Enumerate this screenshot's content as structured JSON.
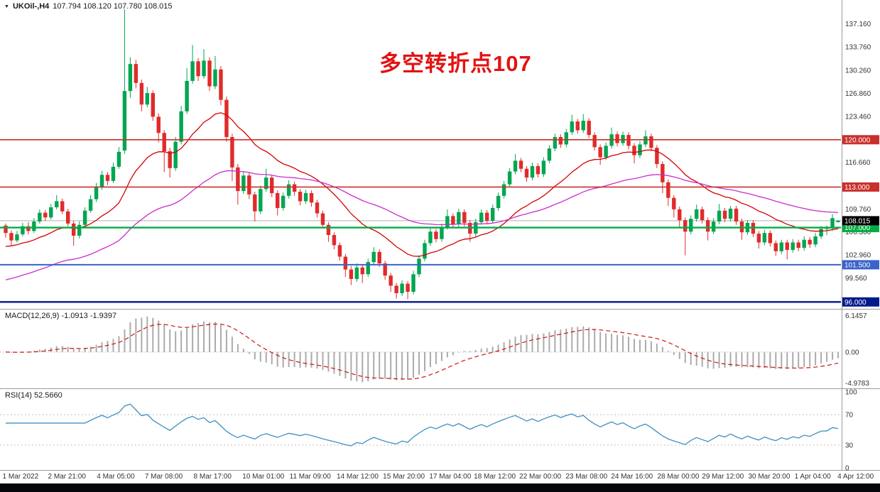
{
  "header": {
    "collapse_icon": "▼",
    "symbol": "UKOil-,H4",
    "quote": "107.794 108.120 107.780 108.015"
  },
  "annotation": "多空转折点107",
  "colors": {
    "annotation": "#e31212",
    "axis_text": "#333333",
    "separator": "#9b9b9b",
    "current_price_line": "#b0b0b0",
    "current_price_badge": "#000000",
    "bottom_bar": "#05050e"
  },
  "chart_data": {
    "type": "candlestick",
    "symbol": "UKOil",
    "timeframe": "H4",
    "bull_color": "#00a651",
    "bear_color": "#e02b2b",
    "y_range": [
      95.4,
      139.2
    ],
    "y_ticks": [
      [
        137.16,
        "137.160"
      ],
      [
        133.76,
        "133.760"
      ],
      [
        130.26,
        "130.260"
      ],
      [
        126.86,
        "126.860"
      ],
      [
        123.46,
        "123.460"
      ],
      [
        116.66,
        "116.660"
      ],
      [
        109.76,
        "109.760"
      ],
      [
        106.36,
        "106.360"
      ],
      [
        102.96,
        "102.960"
      ],
      [
        99.56,
        "99.560"
      ]
    ],
    "hlines": [
      {
        "price": 120.0,
        "label": "120.000",
        "color": "#c9302c",
        "width": 1.6
      },
      {
        "price": 113.0,
        "label": "113.000",
        "color": "#c9302c",
        "width": 1.6
      },
      {
        "price": 107.0,
        "label": "107.000",
        "color": "#00ae43",
        "width": 2.4
      },
      {
        "price": 101.5,
        "label": "101.500",
        "color": "#3a62c9",
        "width": 2.0
      },
      {
        "price": 96.0,
        "label": "96.000",
        "color": "#001a8c",
        "width": 2.4
      }
    ],
    "current_price": {
      "value": 108.015,
      "label": "108.015"
    },
    "moving_averages": [
      {
        "name": "ma-red",
        "period": 20,
        "seed": 104.0,
        "color": "#d40000"
      },
      {
        "name": "ma-magenta",
        "period": 55,
        "seed": 99.0,
        "color": "#cc2bcc"
      }
    ],
    "ohlc": [
      [
        107.3,
        107.6,
        105.5,
        106.2
      ],
      [
        106.2,
        106.6,
        104.4,
        105.1
      ],
      [
        105.1,
        106.5,
        104.8,
        106.0
      ],
      [
        106.0,
        107.7,
        105.7,
        107.2
      ],
      [
        107.2,
        107.8,
        106.0,
        106.5
      ],
      [
        106.5,
        108.4,
        106.2,
        107.9
      ],
      [
        107.9,
        109.7,
        107.6,
        109.2
      ],
      [
        109.2,
        109.6,
        108.0,
        108.5
      ],
      [
        108.5,
        110.5,
        108.2,
        110.0
      ],
      [
        110.0,
        111.8,
        109.7,
        110.9
      ],
      [
        110.9,
        111.3,
        109.0,
        109.4
      ],
      [
        109.4,
        109.8,
        107.2,
        107.6
      ],
      [
        107.6,
        108.0,
        104.3,
        105.8
      ],
      [
        105.8,
        107.9,
        105.4,
        107.4
      ],
      [
        107.4,
        110.0,
        107.1,
        109.5
      ],
      [
        109.5,
        111.8,
        109.2,
        111.2
      ],
      [
        111.2,
        113.6,
        110.8,
        113.0
      ],
      [
        113.0,
        115.4,
        112.6,
        114.8
      ],
      [
        114.8,
        115.2,
        113.3,
        113.9
      ],
      [
        113.9,
        116.6,
        113.6,
        116.0
      ],
      [
        116.0,
        118.9,
        115.7,
        118.2
      ],
      [
        118.4,
        139.3,
        117.9,
        127.2
      ],
      [
        127.2,
        132.2,
        126.2,
        131.2
      ],
      [
        131.2,
        131.8,
        127.6,
        128.4
      ],
      [
        128.4,
        128.9,
        124.2,
        125.2
      ],
      [
        125.2,
        127.8,
        124.8,
        126.9
      ],
      [
        126.9,
        127.3,
        122.8,
        123.4
      ],
      [
        123.4,
        123.9,
        119.6,
        121.0
      ],
      [
        121.0,
        121.4,
        115.2,
        118.3
      ],
      [
        118.3,
        118.8,
        114.4,
        115.8
      ],
      [
        115.8,
        120.4,
        115.4,
        119.7
      ],
      [
        119.7,
        125.0,
        119.3,
        124.2
      ],
      [
        124.2,
        130.6,
        123.8,
        128.7
      ],
      [
        128.7,
        134.0,
        128.3,
        131.6
      ],
      [
        131.6,
        132.1,
        128.7,
        129.4
      ],
      [
        129.4,
        133.4,
        129.0,
        131.7
      ],
      [
        131.7,
        132.2,
        127.2,
        127.9
      ],
      [
        127.9,
        132.4,
        127.5,
        130.4
      ],
      [
        130.4,
        130.9,
        125.1,
        125.9
      ],
      [
        125.9,
        126.4,
        119.7,
        120.4
      ],
      [
        120.4,
        120.9,
        113.9,
        115.9
      ],
      [
        115.9,
        116.4,
        110.4,
        112.4
      ],
      [
        112.4,
        115.3,
        112.0,
        114.7
      ],
      [
        114.7,
        115.1,
        111.2,
        111.9
      ],
      [
        111.9,
        112.3,
        107.9,
        109.4
      ],
      [
        109.4,
        113.2,
        109.0,
        112.7
      ],
      [
        112.7,
        115.7,
        112.3,
        114.4
      ],
      [
        114.4,
        114.8,
        111.5,
        112.1
      ],
      [
        112.1,
        112.5,
        108.8,
        109.9
      ],
      [
        109.9,
        112.2,
        109.5,
        111.7
      ],
      [
        111.7,
        114.0,
        111.3,
        113.4
      ],
      [
        113.4,
        113.8,
        111.7,
        112.3
      ],
      [
        112.3,
        112.7,
        110.3,
        110.9
      ],
      [
        110.9,
        112.6,
        110.5,
        112.1
      ],
      [
        112.1,
        112.5,
        110.1,
        110.7
      ],
      [
        110.7,
        111.1,
        108.5,
        109.1
      ],
      [
        109.1,
        109.5,
        106.9,
        107.4
      ],
      [
        107.4,
        107.8,
        104.9,
        105.9
      ],
      [
        105.9,
        106.3,
        103.8,
        104.4
      ],
      [
        104.4,
        104.8,
        102.1,
        102.7
      ],
      [
        102.7,
        103.1,
        99.7,
        100.8
      ],
      [
        100.8,
        101.3,
        98.5,
        99.4
      ],
      [
        99.4,
        101.7,
        99.0,
        101.1
      ],
      [
        101.1,
        101.5,
        98.8,
        100.1
      ],
      [
        100.1,
        102.4,
        99.7,
        101.9
      ],
      [
        101.9,
        104.1,
        101.5,
        103.4
      ],
      [
        103.4,
        103.8,
        101.2,
        101.7
      ],
      [
        101.7,
        102.1,
        99.3,
        99.9
      ],
      [
        99.9,
        100.3,
        97.5,
        98.4
      ],
      [
        98.4,
        98.8,
        96.5,
        97.3
      ],
      [
        97.3,
        99.2,
        96.9,
        98.7
      ],
      [
        98.7,
        99.1,
        96.4,
        97.5
      ],
      [
        97.5,
        100.6,
        97.1,
        100.1
      ],
      [
        100.1,
        102.9,
        99.7,
        102.4
      ],
      [
        102.4,
        105.2,
        102.0,
        104.7
      ],
      [
        104.7,
        106.9,
        104.3,
        106.4
      ],
      [
        106.4,
        106.8,
        104.8,
        105.3
      ],
      [
        105.3,
        107.6,
        104.9,
        107.1
      ],
      [
        107.1,
        109.7,
        106.7,
        108.7
      ],
      [
        108.7,
        109.1,
        107.0,
        107.5
      ],
      [
        107.5,
        109.8,
        107.1,
        109.3
      ],
      [
        109.3,
        109.7,
        107.2,
        107.7
      ],
      [
        107.7,
        108.1,
        104.9,
        106.1
      ],
      [
        106.1,
        108.3,
        105.7,
        107.8
      ],
      [
        107.8,
        109.7,
        107.4,
        109.2
      ],
      [
        109.2,
        109.6,
        107.5,
        108.0
      ],
      [
        108.0,
        110.4,
        107.6,
        109.9
      ],
      [
        109.9,
        112.2,
        109.5,
        111.7
      ],
      [
        111.7,
        113.9,
        111.3,
        113.4
      ],
      [
        113.4,
        115.8,
        113.0,
        115.3
      ],
      [
        115.3,
        117.9,
        114.9,
        116.9
      ],
      [
        116.9,
        117.3,
        115.2,
        115.7
      ],
      [
        115.7,
        116.1,
        113.8,
        114.4
      ],
      [
        114.4,
        116.6,
        114.0,
        116.1
      ],
      [
        116.1,
        116.5,
        114.4,
        114.9
      ],
      [
        114.9,
        117.4,
        114.5,
        116.9
      ],
      [
        116.9,
        119.2,
        116.5,
        118.7
      ],
      [
        118.7,
        120.9,
        118.3,
        120.4
      ],
      [
        120.4,
        120.8,
        118.8,
        119.3
      ],
      [
        119.3,
        121.6,
        118.9,
        121.1
      ],
      [
        121.1,
        123.7,
        120.7,
        122.7
      ],
      [
        122.7,
        123.1,
        120.9,
        121.4
      ],
      [
        121.4,
        123.8,
        121.0,
        122.8
      ],
      [
        122.8,
        123.2,
        120.2,
        120.7
      ],
      [
        120.7,
        121.1,
        118.4,
        118.9
      ],
      [
        118.9,
        119.3,
        116.3,
        117.4
      ],
      [
        117.4,
        119.6,
        117.0,
        119.1
      ],
      [
        119.1,
        121.8,
        118.7,
        120.8
      ],
      [
        120.8,
        121.2,
        119.0,
        119.5
      ],
      [
        119.5,
        121.2,
        119.1,
        120.7
      ],
      [
        120.7,
        121.1,
        118.6,
        119.1
      ],
      [
        119.1,
        119.5,
        116.5,
        117.7
      ],
      [
        117.7,
        119.8,
        117.3,
        119.3
      ],
      [
        119.3,
        121.4,
        118.9,
        120.5
      ],
      [
        120.5,
        120.9,
        118.3,
        118.8
      ],
      [
        118.8,
        119.2,
        115.8,
        116.4
      ],
      [
        116.4,
        116.8,
        112.1,
        113.7
      ],
      [
        113.7,
        114.1,
        110.2,
        111.4
      ],
      [
        111.4,
        111.8,
        108.5,
        109.7
      ],
      [
        109.7,
        110.1,
        106.9,
        108.1
      ],
      [
        108.1,
        108.5,
        102.9,
        106.4
      ],
      [
        106.4,
        108.8,
        106.0,
        108.3
      ],
      [
        108.3,
        110.4,
        107.9,
        109.7
      ],
      [
        109.7,
        110.1,
        107.6,
        108.1
      ],
      [
        108.1,
        108.5,
        105.1,
        106.4
      ],
      [
        106.4,
        108.4,
        106.0,
        107.9
      ],
      [
        107.9,
        110.5,
        107.5,
        109.5
      ],
      [
        109.5,
        109.9,
        107.8,
        108.3
      ],
      [
        108.3,
        110.2,
        107.9,
        109.8
      ],
      [
        109.8,
        110.2,
        107.4,
        107.9
      ],
      [
        107.9,
        108.3,
        105.2,
        106.3
      ],
      [
        106.3,
        108.1,
        105.9,
        107.7
      ],
      [
        107.7,
        108.1,
        105.6,
        106.1
      ],
      [
        106.1,
        106.5,
        103.9,
        104.8
      ],
      [
        104.8,
        106.7,
        104.4,
        106.2
      ],
      [
        106.2,
        106.6,
        104.2,
        104.7
      ],
      [
        104.7,
        105.1,
        102.8,
        103.5
      ],
      [
        103.5,
        105.2,
        103.1,
        104.8
      ],
      [
        104.8,
        105.2,
        102.3,
        103.7
      ],
      [
        103.7,
        105.3,
        103.3,
        104.8
      ],
      [
        104.8,
        105.2,
        103.5,
        104.0
      ],
      [
        104.0,
        105.7,
        103.6,
        105.2
      ],
      [
        105.2,
        105.6,
        104.0,
        104.5
      ],
      [
        104.5,
        106.2,
        104.1,
        105.7
      ],
      [
        105.7,
        107.2,
        105.3,
        106.8
      ],
      [
        106.8,
        107.3,
        105.9,
        106.9
      ],
      [
        106.9,
        109.0,
        106.5,
        108.4
      ],
      [
        107.794,
        108.12,
        107.78,
        108.015
      ]
    ],
    "x_labels": [
      {
        "text": "1 Mar 2022",
        "pos": 0.003
      },
      {
        "text": "2 Mar 21:00",
        "pos": 0.057
      },
      {
        "text": "4 Mar 05:00",
        "pos": 0.115
      },
      {
        "text": "7 Mar 08:00",
        "pos": 0.172
      },
      {
        "text": "8 Mar 17:00",
        "pos": 0.23
      },
      {
        "text": "10 Mar 01:00",
        "pos": 0.288
      },
      {
        "text": "11 Mar 09:00",
        "pos": 0.344
      },
      {
        "text": "14 Mar 12:00",
        "pos": 0.4
      },
      {
        "text": "15 Mar 20:00",
        "pos": 0.455
      },
      {
        "text": "17 Mar 04:00",
        "pos": 0.51
      },
      {
        "text": "18 Mar 12:00",
        "pos": 0.563
      },
      {
        "text": "22 Mar 00:00",
        "pos": 0.617
      },
      {
        "text": "23 Mar 08:00",
        "pos": 0.672
      },
      {
        "text": "24 Mar 16:00",
        "pos": 0.726
      },
      {
        "text": "28 Mar 00:00",
        "pos": 0.781
      },
      {
        "text": "29 Mar 12:00",
        "pos": 0.834
      },
      {
        "text": "30 Mar 20:00",
        "pos": 0.889
      },
      {
        "text": "1 Apr 04:00",
        "pos": 0.944
      },
      {
        "text": "4 Apr 12:00",
        "pos": 0.995
      }
    ],
    "indicators": {
      "macd": {
        "label": "MACD(12,26,9) -1.0913 -1.9397",
        "fast": 12,
        "slow": 26,
        "signal": 9,
        "axis_labels": {
          "max": "6.1457",
          "zero": "0.00",
          "min": "-4.9783"
        },
        "histogram_color": "#ababab",
        "signal_color": "#cc1414"
      },
      "rsi": {
        "label": "RSI(14) 52.5660",
        "period": 14,
        "levels": [
          70,
          30
        ],
        "axis_labels": [
          [
            100,
            "100"
          ],
          [
            70,
            "70"
          ],
          [
            30,
            "30"
          ],
          [
            0,
            "0"
          ]
        ],
        "color": "#3d8fc2"
      }
    }
  }
}
